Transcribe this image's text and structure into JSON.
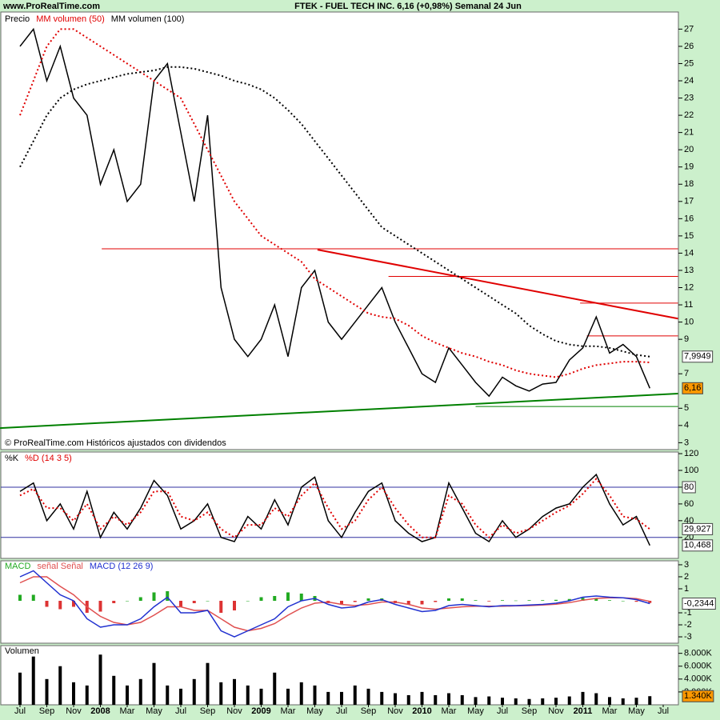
{
  "chart_data": [
    {
      "type": "line",
      "site": "www.ProRealTime.com",
      "title": "FTEK - FUEL TECH INC.    6,16 (+0,98%)    Semanal  24 Jun",
      "note": "© ProRealTime.com Históricos ajustados con dividendos",
      "ylim": [
        2.6,
        27.9
      ],
      "yticks": [
        3,
        4,
        5,
        7,
        9,
        10,
        11,
        12,
        13,
        14,
        15,
        16,
        17,
        18,
        19,
        20,
        21,
        22,
        23,
        24,
        25,
        26,
        27
      ],
      "series": [
        {
          "name": "Precio",
          "color": "#000000",
          "values": [
            26,
            27,
            24,
            26,
            23,
            22,
            18,
            20,
            17,
            18,
            24,
            25,
            21,
            17,
            22,
            12,
            9,
            8,
            9,
            11,
            8,
            12,
            13,
            10,
            9,
            10,
            11,
            12,
            10,
            8.5,
            7,
            6.5,
            8.5,
            7.5,
            6.5,
            5.7,
            6.8,
            6.3,
            6,
            6.4,
            6.5,
            7.8,
            8.5,
            10.3,
            8.2,
            8.7,
            8,
            6.16,
            null
          ]
        },
        {
          "name": "MM volumen (50)",
          "color": "#e00000",
          "style": "dotted",
          "values": [
            22,
            24,
            26,
            27,
            27,
            26.5,
            26,
            25.5,
            25,
            24.5,
            24,
            23.5,
            23,
            21.5,
            20,
            18.5,
            17,
            16,
            15,
            14.5,
            14,
            13.5,
            12.5,
            12,
            11.5,
            11,
            10.5,
            10.3,
            10.2,
            9.8,
            9.2,
            8.8,
            8.5,
            8.2,
            8,
            7.7,
            7.5,
            7.2,
            7,
            6.9,
            6.8,
            7,
            7.3,
            7.5,
            7.6,
            7.7,
            7.7,
            7.66,
            null
          ]
        },
        {
          "name": "MM volumen (100)",
          "color": "#000000",
          "style": "dotted",
          "values": [
            19,
            20.5,
            22,
            23,
            23.5,
            23.8,
            24,
            24.2,
            24.4,
            24.5,
            24.6,
            24.8,
            24.8,
            24.7,
            24.5,
            24.3,
            24,
            23.8,
            23.5,
            23,
            22.3,
            21.5,
            20.5,
            19.5,
            18.5,
            17.5,
            16.5,
            15.5,
            15,
            14.5,
            14,
            13.5,
            13,
            12.5,
            12,
            11.5,
            11,
            10.5,
            9.8,
            9.3,
            8.9,
            8.7,
            8.6,
            8.6,
            8.5,
            8.3,
            8.1,
            7.9949,
            null
          ]
        }
      ],
      "trend_lines": [
        {
          "color": "#e00000",
          "width": 1,
          "x": [
            6.1,
            49.1
          ],
          "y": [
            14.25,
            14.25
          ]
        },
        {
          "color": "#e00000",
          "width": 2,
          "x": [
            22.2,
            49.1
          ],
          "y": [
            14.2,
            10.2
          ]
        },
        {
          "color": "#e00000",
          "width": 1,
          "x": [
            27.5,
            49.1
          ],
          "y": [
            12.65,
            12.65
          ]
        },
        {
          "color": "#e00000",
          "width": 1,
          "x": [
            41.8,
            49.1
          ],
          "y": [
            11.1,
            11.1
          ]
        },
        {
          "color": "#e00000",
          "width": 1,
          "x": [
            42.3,
            49.1
          ],
          "y": [
            9.2,
            9.2
          ]
        },
        {
          "color": "#008000",
          "width": 2,
          "x": [
            -1.5,
            49.1
          ],
          "y": [
            3.85,
            5.85
          ]
        },
        {
          "color": "#008000",
          "width": 1,
          "x": [
            34,
            49.1
          ],
          "y": [
            5.1,
            5.1
          ]
        }
      ],
      "last_labels": [
        {
          "value": 7.9949,
          "label": "7,9949",
          "color": "#ffffff"
        },
        {
          "value": 6.16,
          "label": "6,16",
          "color": "#ff9900"
        }
      ]
    },
    {
      "type": "line",
      "ylim": [
        -5,
        121
      ],
      "yticks": [
        20,
        40,
        60,
        80,
        100,
        120
      ],
      "levels": [
        80,
        20
      ],
      "series": [
        {
          "name": "%K",
          "color": "#000000",
          "values": [
            75,
            85,
            40,
            60,
            30,
            75,
            20,
            50,
            30,
            55,
            88,
            70,
            30,
            40,
            60,
            20,
            15,
            45,
            30,
            65,
            35,
            80,
            92,
            40,
            20,
            50,
            75,
            85,
            40,
            25,
            15,
            20,
            85,
            55,
            25,
            15,
            40,
            20,
            30,
            45,
            55,
            60,
            80,
            95,
            60,
            35,
            45,
            10.468,
            null
          ]
        },
        {
          "name": "%D (14 3 5)",
          "color": "#e00000",
          "style": "dotted",
          "values": [
            70,
            78,
            55,
            55,
            40,
            60,
            30,
            45,
            35,
            50,
            75,
            75,
            45,
            40,
            50,
            30,
            20,
            35,
            35,
            55,
            45,
            70,
            85,
            55,
            30,
            40,
            65,
            80,
            55,
            35,
            20,
            20,
            70,
            60,
            35,
            20,
            35,
            25,
            30,
            40,
            50,
            58,
            72,
            90,
            70,
            45,
            42,
            29.927,
            null
          ]
        }
      ],
      "last_labels": [
        {
          "value": 80,
          "label": "80",
          "color": "#ffffff"
        },
        {
          "value": 29.927,
          "label": "29,927",
          "color": "#ffffff"
        },
        {
          "value": 10.468,
          "label": "10,468",
          "color": "#ffffff"
        }
      ]
    },
    {
      "type": "line",
      "ylim": [
        -3.53,
        3.33
      ],
      "yticks": [
        -3,
        -2,
        -1,
        1,
        2,
        3
      ],
      "series": [
        {
          "name": "MACD",
          "kind": "bar",
          "color": "#22aa22",
          "negative_color": "#dd3333",
          "values": [
            0.5,
            0.5,
            -0.5,
            -0.7,
            -0.5,
            -1,
            -0.9,
            -0.2,
            0,
            0.3,
            0.7,
            0.8,
            -0.5,
            -0.2,
            0,
            -1,
            -0.8,
            0,
            0.3,
            0.4,
            0.7,
            0.6,
            0.4,
            -0.2,
            -0.3,
            -0.1,
            0.2,
            0.2,
            -0.2,
            -0.3,
            -0.3,
            -0.1,
            0.2,
            0.2,
            0.05,
            -0.05,
            0.05,
            0.02,
            0.05,
            0.05,
            0.08,
            0.15,
            0.25,
            0.2,
            0.05,
            0,
            -0.08,
            -0.18,
            null
          ]
        },
        {
          "name": "señal Señal",
          "color": "#e05050",
          "values": [
            1.5,
            2,
            2,
            1.2,
            0.5,
            -0.5,
            -1.3,
            -1.8,
            -2,
            -1.8,
            -1.2,
            -0.5,
            -0.5,
            -0.8,
            -0.8,
            -1.5,
            -2.2,
            -2.5,
            -2.3,
            -1.9,
            -1.2,
            -0.6,
            -0.2,
            -0.1,
            -0.3,
            -0.4,
            -0.3,
            -0.1,
            -0.1,
            -0.3,
            -0.6,
            -0.7,
            -0.6,
            -0.5,
            -0.45,
            -0.45,
            -0.45,
            -0.42,
            -0.4,
            -0.35,
            -0.28,
            -0.15,
            0.05,
            0.2,
            0.25,
            0.25,
            0.18,
            -0.05,
            null
          ]
        },
        {
          "name": "MACD (12 26 9)",
          "color": "#2030d0",
          "values": [
            2,
            2.5,
            1.5,
            0.5,
            0,
            -1.5,
            -2.2,
            -2,
            -2,
            -1.5,
            -0.5,
            0.3,
            -1,
            -1,
            -0.8,
            -2.5,
            -3,
            -2.5,
            -2,
            -1.5,
            -0.5,
            0,
            0.2,
            -0.3,
            -0.6,
            -0.5,
            -0.1,
            0.1,
            -0.3,
            -0.6,
            -0.9,
            -0.8,
            -0.4,
            -0.3,
            -0.4,
            -0.5,
            -0.4,
            -0.4,
            -0.35,
            -0.3,
            -0.2,
            0,
            0.3,
            0.4,
            0.3,
            0.25,
            0.1,
            -0.2344,
            null
          ]
        }
      ],
      "last_labels": [
        {
          "value": -0.2344,
          "label": "-0,2344",
          "color": "#ffffff"
        }
      ]
    },
    {
      "type": "bar",
      "ylim": [
        0,
        9200
      ],
      "yticks": [
        {
          "value": 2000,
          "label": "2.000K"
        },
        {
          "value": 4000,
          "label": "4.000K"
        },
        {
          "value": 6000,
          "label": "6.000K"
        },
        {
          "value": 8000,
          "label": "8.000K"
        }
      ],
      "categories": [
        "Jul",
        null,
        "Sep",
        null,
        "Nov",
        null,
        "2008",
        null,
        "Mar",
        null,
        "May",
        null,
        "Jul",
        null,
        "Sep",
        null,
        "Nov",
        null,
        "2009",
        null,
        "Mar",
        null,
        "May",
        null,
        "Jul",
        null,
        "Sep",
        null,
        "Nov",
        null,
        "2010",
        null,
        "Mar",
        null,
        "May",
        null,
        "Jul",
        null,
        "Sep",
        null,
        "Nov",
        null,
        "2011",
        null,
        "Mar",
        null,
        "May",
        null,
        "Jul"
      ],
      "series": [
        {
          "name": "Volumen",
          "color": "#000000",
          "values": [
            5000,
            7500,
            4000,
            6000,
            3500,
            3000,
            7800,
            4500,
            3000,
            4000,
            6500,
            3000,
            2500,
            4000,
            6500,
            3500,
            4000,
            3000,
            2500,
            5000,
            2500,
            3500,
            3000,
            2000,
            2000,
            3000,
            2500,
            2000,
            1800,
            1500,
            2000,
            1500,
            1800,
            1500,
            1200,
            1300,
            1100,
            1000,
            900,
            1000,
            1100,
            1300,
            2000,
            1800,
            1200,
            1000,
            1100,
            1340,
            null
          ]
        }
      ],
      "last_labels": [
        {
          "value": 1340,
          "label": "1.340K",
          "color": "#ff9900"
        }
      ]
    }
  ]
}
